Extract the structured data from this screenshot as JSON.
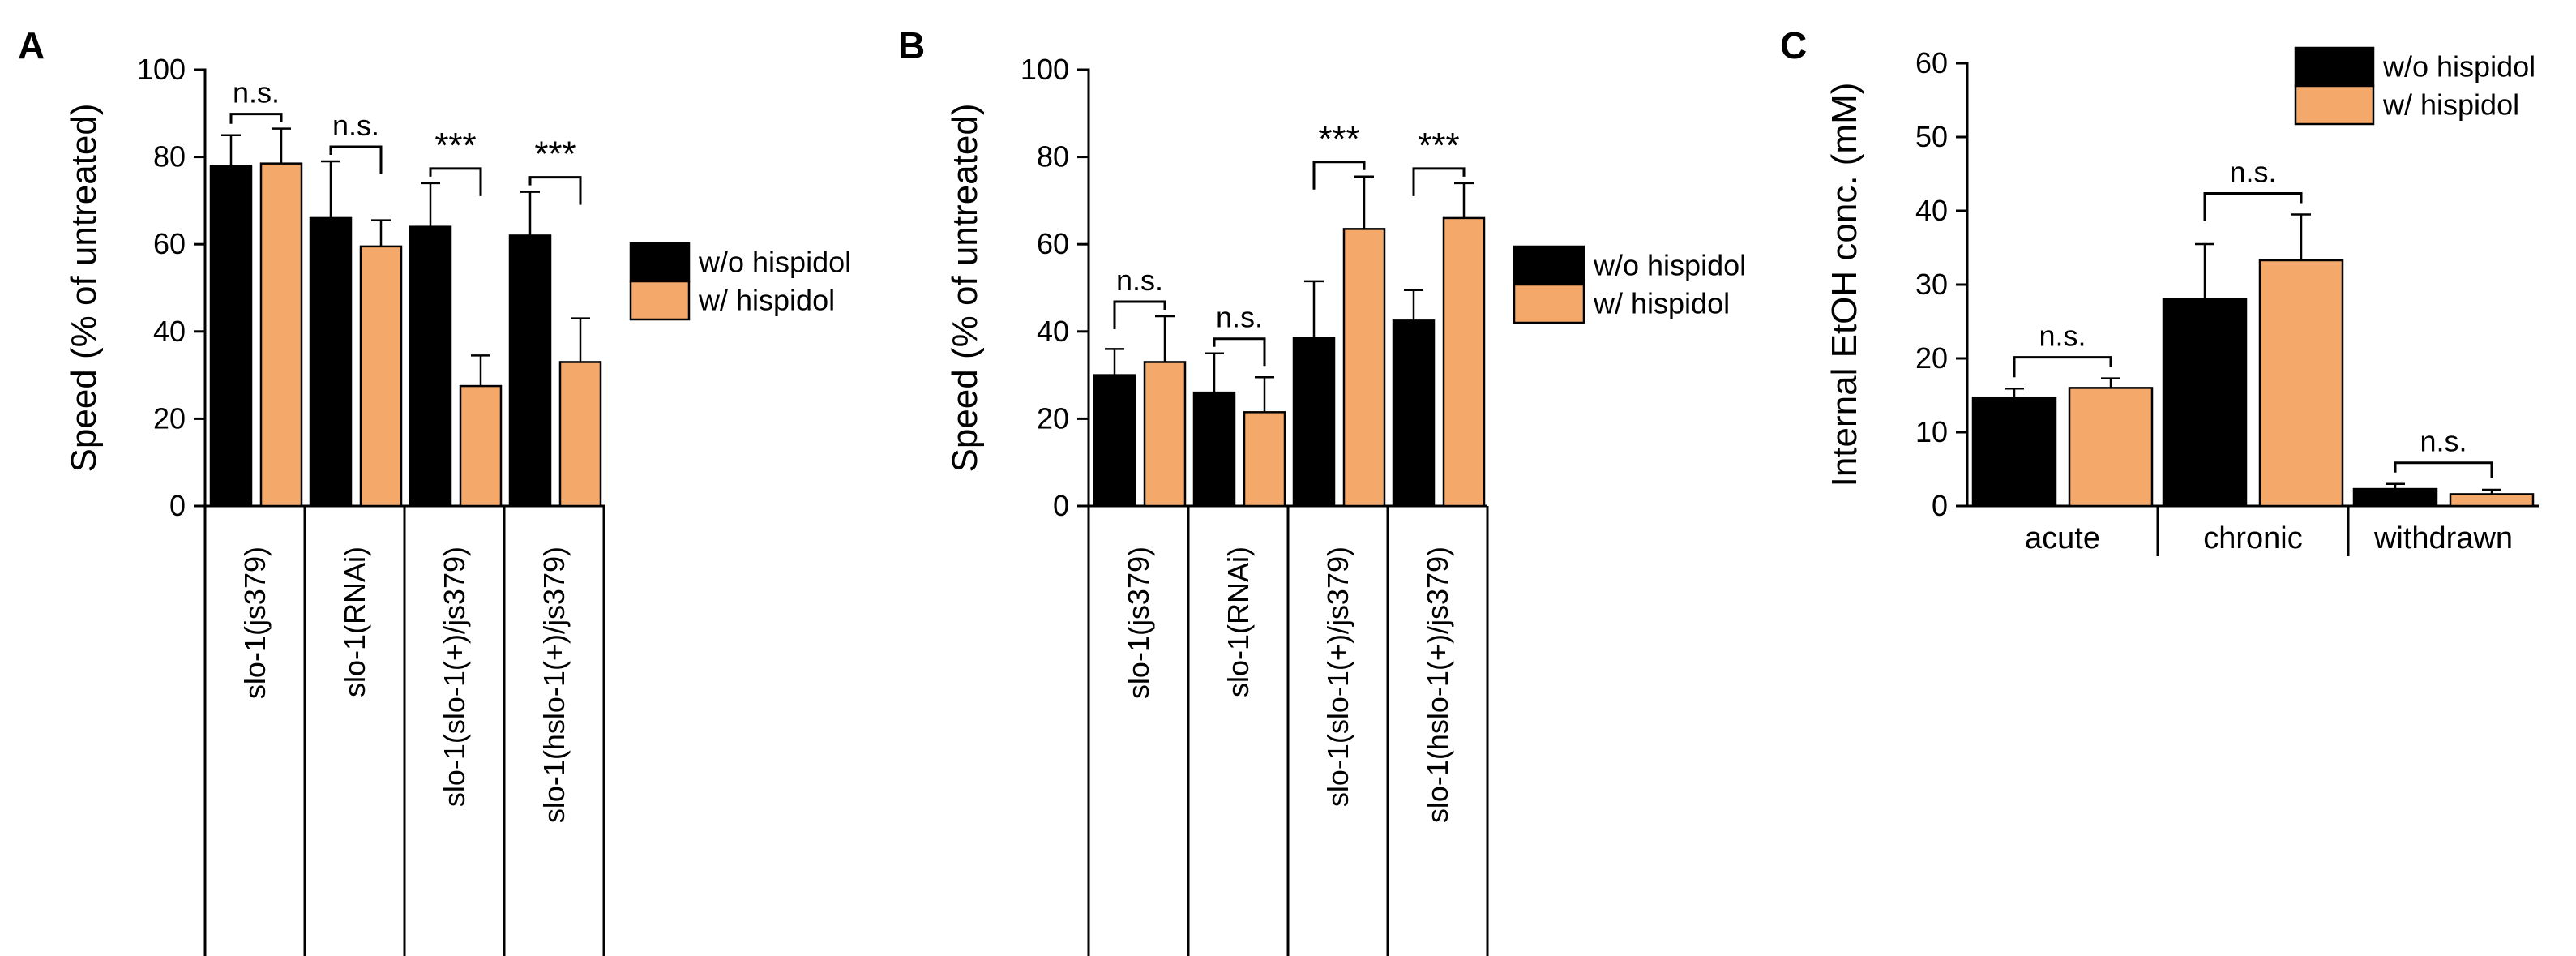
{
  "colors": {
    "without": "#000000",
    "with": "#F4A96A",
    "axis": "#000000"
  },
  "chart_data": [
    {
      "panel": "A",
      "type": "bar",
      "ylabel": "Speed (% of untreated)",
      "ylim": [
        0,
        100
      ],
      "yticks": [
        "0",
        "20",
        "40",
        "60",
        "80",
        "100"
      ],
      "categories": [
        "slo-1(js379)",
        "slo-1(RNAi)",
        "slo-1(slo-1(+)/js379)",
        "slo-1(hslo-1(+)/js379)"
      ],
      "series": [
        {
          "name": "w/o hispidol",
          "values": [
            78,
            66,
            64,
            62
          ],
          "errors": [
            7,
            13,
            10,
            10
          ]
        },
        {
          "name": "w/ hispidol",
          "values": [
            78.5,
            59.5,
            27.5,
            33
          ],
          "errors": [
            8,
            6,
            7,
            10
          ]
        }
      ],
      "significance": [
        "n.s.",
        "n.s.",
        "***",
        "***"
      ],
      "legend": [
        "w/o hispidol",
        "w/ hispidol"
      ]
    },
    {
      "panel": "B",
      "type": "bar",
      "ylabel": "Speed (% of untreated)",
      "ylim": [
        0,
        100
      ],
      "yticks": [
        "0",
        "20",
        "40",
        "60",
        "80",
        "100"
      ],
      "categories": [
        "slo-1(js379)",
        "slo-1(RNAi)",
        "slo-1(slo-1(+)/js379)",
        "slo-1(hslo-1(+)/js379)"
      ],
      "series": [
        {
          "name": "w/o hispidol",
          "values": [
            30,
            26,
            38.5,
            42.5
          ],
          "errors": [
            6,
            9,
            13,
            7
          ]
        },
        {
          "name": "w/ hispidol",
          "values": [
            33,
            21.5,
            63.5,
            66
          ],
          "errors": [
            10.5,
            8,
            12,
            8
          ]
        }
      ],
      "significance": [
        "n.s.",
        "n.s.",
        "***",
        "***"
      ],
      "legend": [
        "w/o hispidol",
        "w/ hispidol"
      ]
    },
    {
      "panel": "C",
      "type": "bar",
      "ylabel": "Internal EtOH conc. (mM)",
      "ylim": [
        0,
        60
      ],
      "yticks": [
        "0",
        "10",
        "20",
        "30",
        "40",
        "50",
        "60"
      ],
      "categories": [
        "acute",
        "chronic",
        "withdrawn"
      ],
      "series": [
        {
          "name": "w/o hispidol",
          "values": [
            14.7,
            28,
            2.3
          ],
          "errors": [
            1.2,
            7.5,
            0.7
          ]
        },
        {
          "name": "w/ hispidol",
          "values": [
            16,
            33.3,
            1.6
          ],
          "errors": [
            1.3,
            6.2,
            0.6
          ]
        }
      ],
      "significance": [
        "n.s.",
        "n.s.",
        "n.s."
      ],
      "legend": [
        "w/o hispidol",
        "w/ hispidol"
      ]
    }
  ]
}
